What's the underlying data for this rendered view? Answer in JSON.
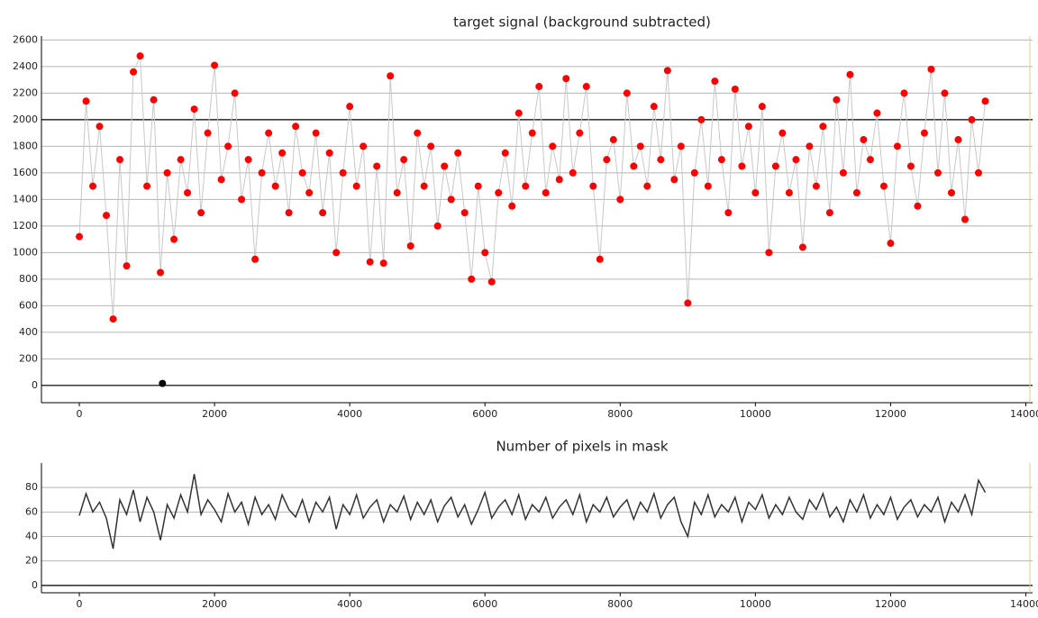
{
  "chart_data": [
    {
      "type": "line",
      "title": "target signal (background subtracted)",
      "color": "#ff0000",
      "line_color": "#c8c8c8",
      "markers": true,
      "grid": true,
      "xlim": [
        -560,
        14100
      ],
      "ylim": [
        -130,
        2630
      ],
      "xticks": [
        0,
        2000,
        4000,
        6000,
        8000,
        10000,
        12000,
        14000
      ],
      "yticks": [
        0,
        200,
        400,
        600,
        800,
        1000,
        1200,
        1400,
        1600,
        1800,
        2000,
        2200,
        2400,
        2600
      ],
      "reference_lines": [
        0,
        2000
      ],
      "outlier": {
        "x": 1230,
        "y": 15,
        "color": "#000000"
      },
      "x": [
        0,
        100,
        200,
        300,
        400,
        500,
        600,
        700,
        800,
        900,
        1000,
        1100,
        1200,
        1300,
        1400,
        1500,
        1600,
        1700,
        1800,
        1900,
        2000,
        2100,
        2200,
        2300,
        2400,
        2500,
        2600,
        2700,
        2800,
        2900,
        3000,
        3100,
        3200,
        3300,
        3400,
        3500,
        3600,
        3700,
        3800,
        3900,
        4000,
        4100,
        4200,
        4300,
        4400,
        4500,
        4600,
        4700,
        4800,
        4900,
        5000,
        5100,
        5200,
        5300,
        5400,
        5500,
        5600,
        5700,
        5800,
        5900,
        6000,
        6100,
        6200,
        6300,
        6400,
        6500,
        6600,
        6700,
        6800,
        6900,
        7000,
        7100,
        7200,
        7300,
        7400,
        7500,
        7600,
        7700,
        7800,
        7900,
        8000,
        8100,
        8200,
        8300,
        8400,
        8500,
        8600,
        8700,
        8800,
        8900,
        9000,
        9100,
        9200,
        9300,
        9400,
        9500,
        9600,
        9700,
        9800,
        9900,
        10000,
        10100,
        10200,
        10300,
        10400,
        10500,
        10600,
        10700,
        10800,
        10900,
        11000,
        11100,
        11200,
        11300,
        11400,
        11500,
        11600,
        11700,
        11800,
        11900,
        12000,
        12100,
        12200,
        12300,
        12400,
        12500,
        12600,
        12700,
        12800,
        12900,
        13000,
        13100,
        13200,
        13300,
        13400
      ],
      "values": [
        1120,
        2140,
        1500,
        1950,
        1280,
        500,
        1700,
        900,
        2360,
        2480,
        1500,
        2150,
        850,
        1600,
        1100,
        1700,
        1450,
        2080,
        1300,
        1900,
        2410,
        1550,
        1800,
        2200,
        1400,
        1700,
        950,
        1600,
        1900,
        1500,
        1750,
        1300,
        1950,
        1600,
        1450,
        1900,
        1300,
        1750,
        1000,
        1600,
        2100,
        1500,
        1800,
        930,
        1650,
        920,
        2330,
        1450,
        1700,
        1050,
        1900,
        1500,
        1800,
        1200,
        1650,
        1400,
        1750,
        1300,
        800,
        1500,
        1000,
        780,
        1450,
        1750,
        1350,
        2050,
        1500,
        1900,
        2250,
        1450,
        1800,
        1550,
        2310,
        1600,
        1900,
        2250,
        1500,
        950,
        1700,
        1850,
        1400,
        2200,
        1650,
        1800,
        1500,
        2100,
        1700,
        2370,
        1550,
        1800,
        620,
        1600,
        2000,
        1500,
        2290,
        1700,
        1300,
        2230,
        1650,
        1950,
        1450,
        2100,
        1000,
        1650,
        1900,
        1450,
        1700,
        1040,
        1800,
        1500,
        1950,
        1300,
        2150,
        1600,
        2340,
        1450,
        1850,
        1700,
        2050,
        1500,
        1070,
        1800,
        2200,
        1650,
        1350,
        1900,
        2380,
        1600,
        2200,
        1450,
        1850,
        1250,
        2000,
        1600,
        2140
      ]
    },
    {
      "type": "line",
      "title": "Number of pixels in mask",
      "color": "#333333",
      "markers": false,
      "grid": true,
      "xlim": [
        -560,
        14100
      ],
      "ylim": [
        -6,
        100
      ],
      "xticks": [
        0,
        2000,
        4000,
        6000,
        8000,
        10000,
        12000,
        14000
      ],
      "yticks": [
        0,
        20,
        40,
        60,
        80
      ],
      "reference_lines": [
        0
      ],
      "x": [
        0,
        100,
        200,
        300,
        400,
        500,
        600,
        700,
        800,
        900,
        1000,
        1100,
        1200,
        1300,
        1400,
        1500,
        1600,
        1700,
        1800,
        1900,
        2000,
        2100,
        2200,
        2300,
        2400,
        2500,
        2600,
        2700,
        2800,
        2900,
        3000,
        3100,
        3200,
        3300,
        3400,
        3500,
        3600,
        3700,
        3800,
        3900,
        4000,
        4100,
        4200,
        4300,
        4400,
        4500,
        4600,
        4700,
        4800,
        4900,
        5000,
        5100,
        5200,
        5300,
        5400,
        5500,
        5600,
        5700,
        5800,
        5900,
        6000,
        6100,
        6200,
        6300,
        6400,
        6500,
        6600,
        6700,
        6800,
        6900,
        7000,
        7100,
        7200,
        7300,
        7400,
        7500,
        7600,
        7700,
        7800,
        7900,
        8000,
        8100,
        8200,
        8300,
        8400,
        8500,
        8600,
        8700,
        8800,
        8900,
        9000,
        9100,
        9200,
        9300,
        9400,
        9500,
        9600,
        9700,
        9800,
        9900,
        10000,
        10100,
        10200,
        10300,
        10400,
        10500,
        10600,
        10700,
        10800,
        10900,
        11000,
        11100,
        11200,
        11300,
        11400,
        11500,
        11600,
        11700,
        11800,
        11900,
        12000,
        12100,
        12200,
        12300,
        12400,
        12500,
        12600,
        12700,
        12800,
        12900,
        13000,
        13100,
        13200,
        13300,
        13400
      ],
      "values": [
        57,
        75,
        60,
        68,
        55,
        30,
        70,
        58,
        78,
        52,
        72,
        60,
        37,
        66,
        55,
        74,
        60,
        91,
        58,
        70,
        62,
        52,
        75,
        60,
        68,
        50,
        72,
        58,
        66,
        54,
        74,
        62,
        56,
        70,
        52,
        68,
        60,
        72,
        46,
        66,
        58,
        74,
        55,
        64,
        70,
        52,
        66,
        60,
        73,
        54,
        68,
        58,
        70,
        52,
        65,
        72,
        56,
        66,
        50,
        62,
        76,
        55,
        64,
        70,
        58,
        74,
        54,
        66,
        60,
        72,
        55,
        64,
        70,
        58,
        74,
        52,
        66,
        60,
        72,
        56,
        64,
        70,
        54,
        68,
        60,
        75,
        55,
        66,
        72,
        52,
        40,
        68,
        58,
        74,
        56,
        66,
        60,
        72,
        52,
        68,
        62,
        74,
        55,
        66,
        58,
        72,
        60,
        54,
        70,
        62,
        75,
        56,
        64,
        52,
        70,
        60,
        74,
        55,
        66,
        58,
        72,
        54,
        64,
        70,
        56,
        66,
        60,
        72,
        52,
        68,
        60,
        74,
        58,
        86,
        76
      ]
    }
  ]
}
